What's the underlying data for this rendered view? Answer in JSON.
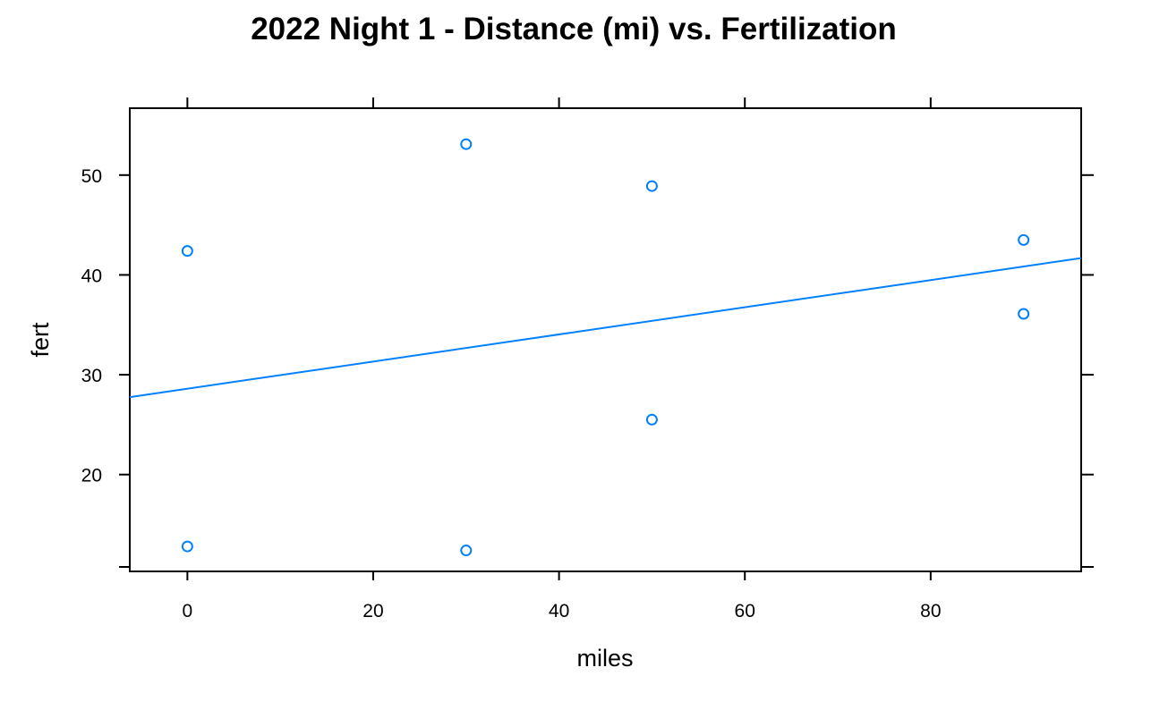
{
  "chart_data": {
    "type": "scatter",
    "title": "2022 Night 1 - Distance (mi) vs. Fertilization",
    "xlabel": "miles",
    "ylabel": "fert",
    "xlim": [
      -6.2,
      96.2
    ],
    "ylim": [
      10.3,
      56.7
    ],
    "x_ticks": [
      0,
      20,
      40,
      60,
      80
    ],
    "y_ticks": [
      20,
      30,
      40,
      50
    ],
    "x_tick_labels": [
      "0",
      "20",
      "40",
      "60",
      "80"
    ],
    "y_tick_labels": [
      "20",
      "30",
      "40",
      "50"
    ],
    "grid": false,
    "legend": "none",
    "series": [
      {
        "points": [
          {
            "x": 0,
            "y": 42.4
          },
          {
            "x": 0,
            "y": 12.8
          },
          {
            "x": 30,
            "y": 53.1
          },
          {
            "x": 30,
            "y": 12.4
          },
          {
            "x": 50,
            "y": 48.9
          },
          {
            "x": 50,
            "y": 25.5
          },
          {
            "x": 90,
            "y": 43.5
          },
          {
            "x": 90,
            "y": 36.1
          }
        ]
      }
    ],
    "fit_line": {
      "intercept": 28.6,
      "slope": 0.136
    },
    "colors": {
      "points": "#0080FF",
      "line": "#0080FF",
      "frame": "#000000"
    }
  }
}
